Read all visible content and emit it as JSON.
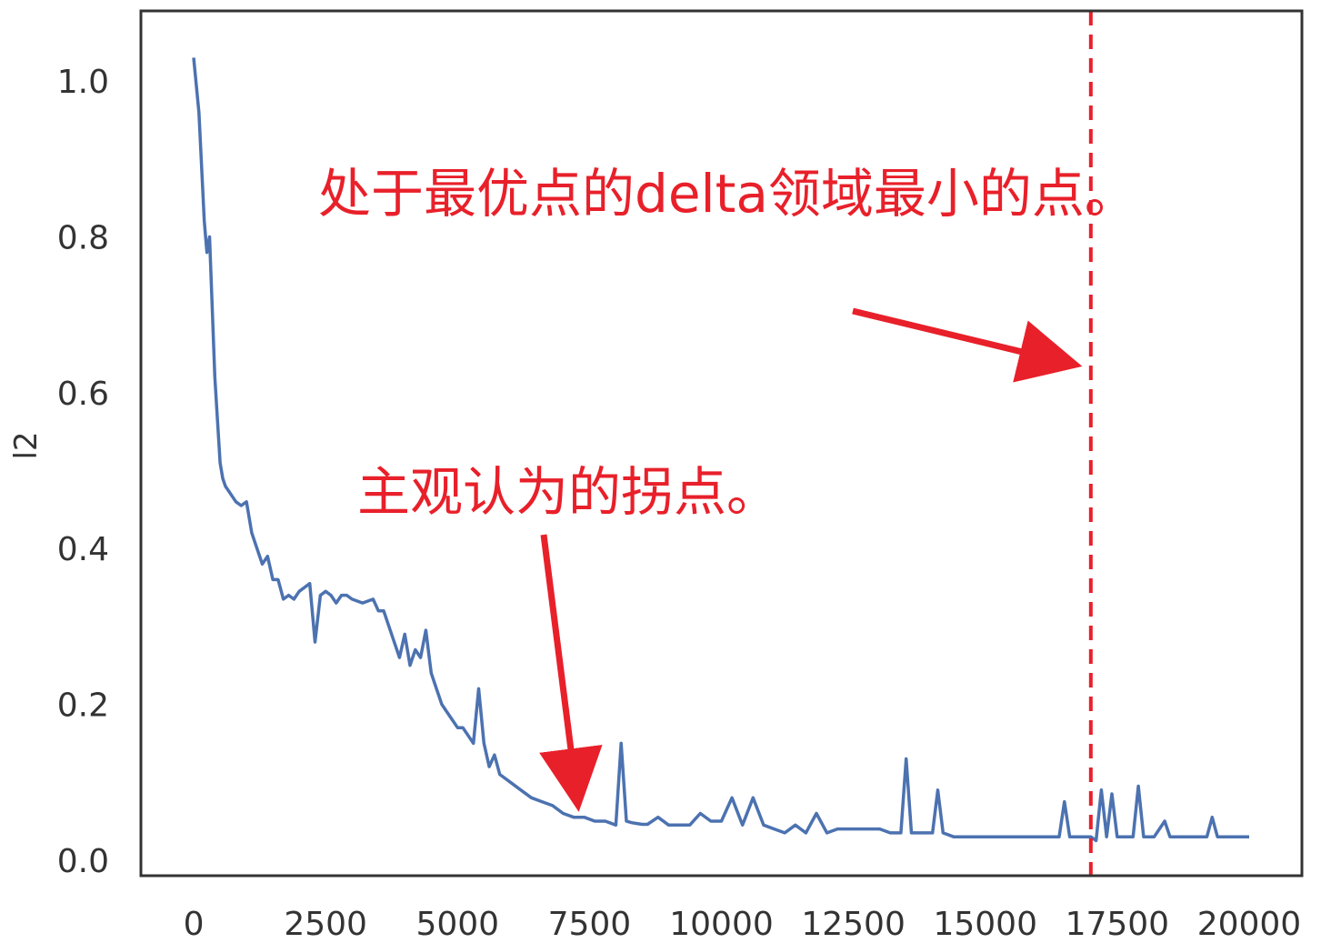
{
  "chart_data": {
    "type": "line",
    "title": "",
    "xlabel": "",
    "ylabel": "l2",
    "xlim": [
      -1000,
      21000
    ],
    "ylim": [
      -0.02,
      1.09
    ],
    "grid": false,
    "xticks": [
      0,
      2500,
      5000,
      7500,
      10000,
      12500,
      15000,
      17500,
      20000
    ],
    "xtick_labels": [
      "0",
      "2500",
      "5000",
      "7500",
      "10000",
      "12500",
      "15000",
      "17500",
      "20000"
    ],
    "yticks": [
      0.0,
      0.2,
      0.4,
      0.6,
      0.8,
      1.0
    ],
    "ytick_labels": [
      "0.0",
      "0.2",
      "0.4",
      "0.6",
      "0.8",
      "1.0"
    ],
    "line_color": "#4c72b0",
    "annotation_color": "#e8202a",
    "series": [
      {
        "x": [
          0,
          100,
          200,
          250,
          300,
          400,
          500,
          550,
          600,
          700,
          800,
          900,
          1000,
          1100,
          1200,
          1300,
          1400,
          1500,
          1600,
          1700,
          1800,
          1900,
          2000,
          2100,
          2200,
          2300,
          2400,
          2500,
          2600,
          2700,
          2800,
          2900,
          3000,
          3200,
          3400,
          3500,
          3600,
          3800,
          3900,
          4000,
          4100,
          4200,
          4300,
          4400,
          4500,
          4600,
          4700,
          4800,
          4900,
          5000,
          5100,
          5200,
          5300,
          5400,
          5500,
          5600,
          5700,
          5800,
          5900,
          6000,
          6200,
          6400,
          6600,
          6800,
          7000,
          7200,
          7400,
          7600,
          7800,
          8000,
          8100,
          8200,
          8300,
          8400,
          8500,
          8600,
          8800,
          9000,
          9200,
          9400,
          9600,
          9800,
          10000,
          10200,
          10400,
          10600,
          10800,
          11000,
          11200,
          11400,
          11600,
          11800,
          12000,
          12200,
          12400,
          12600,
          12800,
          13000,
          13200,
          13400,
          13500,
          13600,
          13800,
          14000,
          14100,
          14200,
          14400,
          14600,
          14800,
          15000,
          15200,
          15400,
          15600,
          15800,
          16000,
          16200,
          16400,
          16500,
          16600,
          16800,
          17000,
          17100,
          17200,
          17300,
          17400,
          17500,
          17600,
          17800,
          17900,
          18000,
          18100,
          18200,
          18400,
          18500,
          18600,
          18800,
          19000,
          19200,
          19300,
          19400,
          19600,
          19800,
          20000
        ],
        "y": [
          1.03,
          0.96,
          0.82,
          0.78,
          0.8,
          0.62,
          0.51,
          0.49,
          0.48,
          0.47,
          0.46,
          0.455,
          0.46,
          0.42,
          0.4,
          0.38,
          0.39,
          0.36,
          0.36,
          0.335,
          0.34,
          0.335,
          0.345,
          0.35,
          0.355,
          0.28,
          0.34,
          0.345,
          0.34,
          0.33,
          0.34,
          0.34,
          0.335,
          0.33,
          0.335,
          0.32,
          0.32,
          0.28,
          0.26,
          0.29,
          0.25,
          0.27,
          0.26,
          0.295,
          0.24,
          0.22,
          0.2,
          0.19,
          0.18,
          0.17,
          0.17,
          0.16,
          0.15,
          0.22,
          0.15,
          0.12,
          0.135,
          0.11,
          0.105,
          0.1,
          0.09,
          0.08,
          0.075,
          0.07,
          0.06,
          0.055,
          0.055,
          0.05,
          0.05,
          0.045,
          0.15,
          0.05,
          0.048,
          0.047,
          0.046,
          0.046,
          0.055,
          0.045,
          0.045,
          0.045,
          0.06,
          0.05,
          0.05,
          0.08,
          0.045,
          0.08,
          0.045,
          0.04,
          0.035,
          0.045,
          0.035,
          0.06,
          0.035,
          0.04,
          0.04,
          0.04,
          0.04,
          0.04,
          0.035,
          0.035,
          0.13,
          0.035,
          0.035,
          0.035,
          0.09,
          0.035,
          0.03,
          0.03,
          0.03,
          0.03,
          0.03,
          0.03,
          0.03,
          0.03,
          0.03,
          0.03,
          0.03,
          0.075,
          0.03,
          0.03,
          0.03,
          0.025,
          0.09,
          0.03,
          0.085,
          0.03,
          0.03,
          0.03,
          0.095,
          0.03,
          0.03,
          0.03,
          0.05,
          0.03,
          0.03,
          0.03,
          0.03,
          0.03,
          0.055,
          0.03,
          0.03,
          0.03,
          0.03
        ]
      }
    ],
    "vline": {
      "x": 17000,
      "style": "dashed"
    },
    "annotations": [
      {
        "text": "处于最优点的delta领域最小的点。",
        "target": "vline"
      },
      {
        "text": "主观认为的拐点。",
        "target": [
          7400,
          0.06
        ]
      }
    ]
  }
}
